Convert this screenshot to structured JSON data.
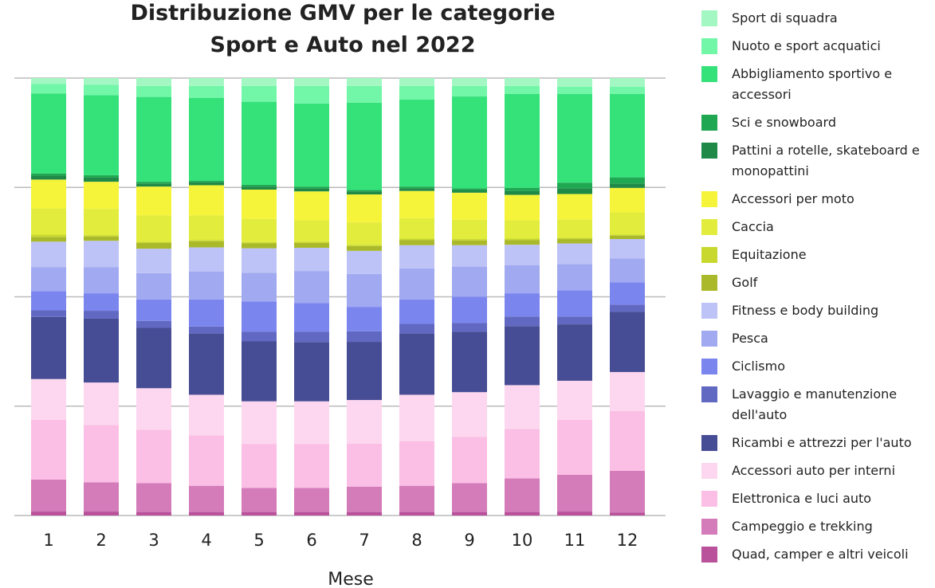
{
  "chart_data": {
    "type": "stacked_bar",
    "title": "Distribuzione GMV per le categorie Sport e Auto nel 2022",
    "xlabel": "Mese",
    "categories": [
      "1",
      "2",
      "3",
      "4",
      "5",
      "6",
      "7",
      "8",
      "9",
      "10",
      "11",
      "12"
    ],
    "ylim": [
      0,
      100
    ],
    "yticks": [
      0,
      25,
      50,
      75,
      100
    ],
    "grid": true,
    "legend": "right",
    "series": [
      {
        "name": "Sport di squadra",
        "color": "#a3f7c3",
        "values": [
          1.3,
          1.5,
          1.8,
          1.8,
          1.8,
          1.8,
          1.8,
          1.8,
          1.8,
          1.8,
          2.0,
          2.0
        ]
      },
      {
        "name": "Nuoto e sport acquatici",
        "color": "#72f6a8",
        "values": [
          2.2,
          2.4,
          2.5,
          2.7,
          3.6,
          4.0,
          3.8,
          3.1,
          2.4,
          1.8,
          1.6,
          1.6
        ]
      },
      {
        "name": "Abbigliamento sportivo e accessori",
        "color": "#35e27a",
        "values": [
          18.3,
          18.3,
          19.4,
          19.0,
          19.0,
          19.0,
          20.0,
          19.9,
          21.0,
          21.5,
          20.3,
          19.1
        ]
      },
      {
        "name": "Sci e snowboard",
        "color": "#1fa851",
        "values": [
          0.5,
          0.5,
          0.4,
          0.3,
          0.4,
          0.4,
          0.3,
          0.4,
          0.4,
          0.7,
          1.3,
          1.4
        ]
      },
      {
        "name": "Pattini a rotelle, skateboard e monopattini",
        "color": "#1f8a48",
        "values": [
          0.9,
          1.0,
          0.7,
          0.7,
          0.7,
          0.7,
          0.7,
          0.6,
          0.6,
          0.9,
          1.3,
          1.0
        ]
      },
      {
        "name": "Accessori per moto",
        "color": "#f6f43a",
        "values": [
          6.6,
          6.2,
          6.6,
          6.9,
          6.7,
          6.6,
          6.4,
          6.2,
          6.2,
          5.8,
          5.8,
          5.6
        ]
      },
      {
        "name": "Caccia",
        "color": "#e2ec3c",
        "values": [
          6.0,
          6.0,
          6.0,
          5.6,
          5.3,
          4.9,
          5.1,
          4.7,
          4.4,
          4.2,
          4.2,
          5.1
        ]
      },
      {
        "name": "Equitazione",
        "color": "#c8d82f",
        "values": [
          0.5,
          0.3,
          0.3,
          0.3,
          0.3,
          0.3,
          0.3,
          0.3,
          0.3,
          0.3,
          0.3,
          0.2
        ]
      },
      {
        "name": "Golf",
        "color": "#aab92a",
        "values": [
          1.1,
          1.0,
          1.3,
          1.4,
          1.1,
          1.1,
          1.1,
          1.2,
          1.1,
          1.1,
          1.0,
          0.8
        ]
      },
      {
        "name": "Fitness e body building",
        "color": "#bdc3f6",
        "values": [
          5.8,
          6.0,
          5.6,
          5.5,
          5.6,
          5.3,
          5.3,
          5.3,
          4.9,
          4.7,
          4.7,
          4.4
        ]
      },
      {
        "name": "Pesca",
        "color": "#a1a9f0",
        "values": [
          5.5,
          6.0,
          6.0,
          6.4,
          6.6,
          7.3,
          7.5,
          7.1,
          6.9,
          6.4,
          6.0,
          5.5
        ]
      },
      {
        "name": "Ciclismo",
        "color": "#7b85ee",
        "values": [
          4.4,
          4.0,
          4.9,
          6.2,
          6.9,
          6.6,
          5.6,
          5.6,
          6.0,
          5.3,
          6.0,
          5.1
        ]
      },
      {
        "name": "Lavaggio e manutenzione dell'auto",
        "color": "#6068c2",
        "values": [
          1.5,
          1.8,
          1.6,
          1.6,
          2.2,
          2.4,
          2.4,
          2.2,
          2.0,
          2.2,
          1.8,
          1.6
        ]
      },
      {
        "name": "Ricambi e attrezzi per l'auto",
        "color": "#474d94",
        "values": [
          14.2,
          14.6,
          13.8,
          14.0,
          13.7,
          13.5,
          13.3,
          14.0,
          13.8,
          13.5,
          12.9,
          13.8
        ]
      },
      {
        "name": "Accessori auto per interni",
        "color": "#fdd7ef",
        "values": [
          9.3,
          9.7,
          9.5,
          9.3,
          9.8,
          9.8,
          10.0,
          10.6,
          10.2,
          10.0,
          8.9,
          8.9
        ]
      },
      {
        "name": "Elettronica e luci auto",
        "color": "#fbbee4",
        "values": [
          13.7,
          13.1,
          12.2,
          11.5,
          10.0,
          10.0,
          9.8,
          10.2,
          10.6,
          11.3,
          12.6,
          13.7
        ]
      },
      {
        "name": "Campeggio e trekking",
        "color": "#d47bb9",
        "values": [
          7.3,
          6.7,
          6.6,
          6.0,
          5.5,
          5.5,
          5.8,
          6.0,
          6.6,
          7.7,
          8.4,
          9.5
        ]
      },
      {
        "name": "Quad, camper e altri veicoli",
        "color": "#b9519b",
        "values": [
          0.9,
          0.9,
          0.8,
          0.8,
          0.8,
          0.8,
          0.8,
          0.8,
          0.8,
          0.8,
          0.9,
          0.7
        ]
      }
    ]
  }
}
